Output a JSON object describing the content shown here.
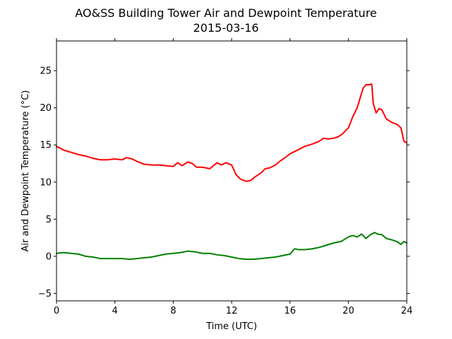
{
  "chart_data": {
    "type": "line",
    "title": "AO&SS Building Tower Air and Dewpoint Temperature",
    "subtitle": "2015-03-16",
    "xlabel": "Time (UTC)",
    "ylabel": "Air and Dewpoint Temperature (°C)",
    "xlim": [
      0,
      24
    ],
    "ylim": [
      -6,
      29
    ],
    "x_ticks": [
      0,
      4,
      8,
      12,
      16,
      20,
      24
    ],
    "y_ticks": [
      -5,
      0,
      5,
      10,
      15,
      20,
      25
    ],
    "grid": false,
    "series": [
      {
        "color": "#ff0000",
        "x": [
          0,
          0.5,
          1,
          1.5,
          2,
          2.5,
          3,
          3.5,
          4,
          4.5,
          4.8,
          5.2,
          5.5,
          6,
          6.5,
          7,
          7.5,
          8,
          8.3,
          8.6,
          9,
          9.3,
          9.6,
          10,
          10.5,
          11,
          11.3,
          11.6,
          12,
          12.3,
          12.6,
          13,
          13.3,
          13.6,
          14,
          14.3,
          14.6,
          15,
          15.3,
          15.6,
          16,
          16.5,
          17,
          17.5,
          18,
          18.3,
          18.6,
          19,
          19.3,
          19.6,
          20,
          20.3,
          20.6,
          21,
          21.2,
          21.4,
          21.6,
          21.7,
          21.9,
          22.1,
          22.3,
          22.6,
          23,
          23.3,
          23.6,
          23.8,
          24
        ],
        "values": [
          14.8,
          14.3,
          14.0,
          13.7,
          13.5,
          13.2,
          13.0,
          13.0,
          13.1,
          13.0,
          13.3,
          13.1,
          12.8,
          12.4,
          12.3,
          12.3,
          12.2,
          12.1,
          12.6,
          12.2,
          12.7,
          12.5,
          12.0,
          12.0,
          11.8,
          12.6,
          12.3,
          12.6,
          12.3,
          11.0,
          10.4,
          10.1,
          10.2,
          10.7,
          11.2,
          11.8,
          11.9,
          12.3,
          12.8,
          13.2,
          13.8,
          14.3,
          14.8,
          15.1,
          15.5,
          15.9,
          15.8,
          15.9,
          16.1,
          16.5,
          17.3,
          18.8,
          20.0,
          22.6,
          23.1,
          23.1,
          23.2,
          20.6,
          19.3,
          19.9,
          19.7,
          18.5,
          18.0,
          17.8,
          17.3,
          15.5,
          15.3
        ]
      },
      {
        "color": "#008000",
        "x": [
          0,
          0.5,
          1,
          1.5,
          2,
          2.5,
          3,
          3.5,
          4,
          4.5,
          5,
          5.5,
          6,
          6.5,
          7,
          7.5,
          8,
          8.5,
          9,
          9.5,
          10,
          10.5,
          11,
          11.5,
          12,
          12.5,
          13,
          13.5,
          14,
          14.5,
          15,
          15.5,
          16,
          16.3,
          16.6,
          17,
          17.5,
          18,
          18.5,
          19,
          19.5,
          20,
          20.3,
          20.6,
          20.9,
          21.2,
          21.5,
          21.8,
          22,
          22.3,
          22.6,
          23,
          23.3,
          23.6,
          23.8,
          24
        ],
        "values": [
          0.4,
          0.5,
          0.4,
          0.3,
          0.0,
          -0.1,
          -0.3,
          -0.3,
          -0.3,
          -0.3,
          -0.4,
          -0.3,
          -0.2,
          -0.1,
          0.1,
          0.3,
          0.4,
          0.5,
          0.7,
          0.6,
          0.4,
          0.4,
          0.2,
          0.1,
          -0.1,
          -0.3,
          -0.4,
          -0.4,
          -0.3,
          -0.2,
          -0.1,
          0.1,
          0.3,
          1.0,
          0.9,
          0.9,
          1.0,
          1.2,
          1.5,
          1.8,
          2.0,
          2.6,
          2.8,
          2.6,
          3.0,
          2.4,
          2.9,
          3.2,
          3.0,
          2.9,
          2.4,
          2.2,
          2.0,
          1.6,
          2.0,
          1.8
        ]
      }
    ]
  }
}
